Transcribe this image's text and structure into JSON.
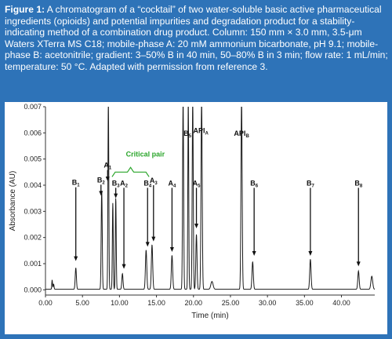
{
  "caption": {
    "label": "Figure 1:",
    "text": " A chromatogram of a “cocktail” of two water-soluble basic active pharmaceutical ingredients (opioids) and potential impurities and degradation product for a stability-indicating method of a combination drug product. Column: 150 mm × 3.0 mm, 3.5-μm Waters XTerra MS C18; mobile-phase A: 20 mM ammonium bicarbonate, pH 9.1; mobile-phase B: acetonitrile; gradient: 3–50% B in 40 min, 50–80% B in 3 min; flow rate: 1 mL/min; temperature: 50 °C. Adapted with permission from reference 3."
  },
  "colors": {
    "banner": "#2e73b8",
    "trace": "#1a1a1a",
    "critical_pair": "#2aa52a",
    "axis": "#333333"
  },
  "chart_data": {
    "type": "line",
    "xlabel": "Time (min)",
    "ylabel": "Absorbance (AU)",
    "xlim": [
      0,
      44.5
    ],
    "ylim": [
      -0.0002,
      0.007
    ],
    "xticks": [
      0.0,
      5.0,
      10.0,
      15.0,
      20.0,
      25.0,
      30.0,
      35.0,
      40.0
    ],
    "xtick_labels": [
      "0.00",
      "5.00",
      "10.00",
      "15.00",
      "20.00",
      "25.00",
      "30.00",
      "35.00",
      "40.00"
    ],
    "yticks": [
      0.0,
      0.001,
      0.002,
      0.003,
      0.004,
      0.005,
      0.006,
      0.007
    ],
    "ytick_labels": [
      "0.000",
      "0.001",
      "0.002",
      "0.003",
      "0.004",
      "0.005",
      "0.006",
      "0.007"
    ],
    "grid": false,
    "baseline": 2e-05,
    "peaks": [
      {
        "t": 0.9,
        "h": 0.00035,
        "w": 0.05
      },
      {
        "t": 1.1,
        "h": 0.0002,
        "w": 0.06
      },
      {
        "t": 4.1,
        "h": 0.00082,
        "w": 0.08
      },
      {
        "t": 7.6,
        "h": 0.0038,
        "w": 0.07
      },
      {
        "t": 8.5,
        "h": 0.0072,
        "w": 0.06
      },
      {
        "t": 9.1,
        "h": 0.0033,
        "w": 0.06
      },
      {
        "t": 9.5,
        "h": 0.0035,
        "w": 0.06
      },
      {
        "t": 10.4,
        "h": 0.0006,
        "w": 0.08
      },
      {
        "t": 13.6,
        "h": 0.0015,
        "w": 0.09
      },
      {
        "t": 14.4,
        "h": 0.0017,
        "w": 0.09
      },
      {
        "t": 17.1,
        "h": 0.0013,
        "w": 0.09
      },
      {
        "t": 18.6,
        "h": 0.0072,
        "w": 0.07
      },
      {
        "t": 19.3,
        "h": 0.0072,
        "w": 0.06
      },
      {
        "t": 19.9,
        "h": 0.0072,
        "w": 0.07
      },
      {
        "t": 20.4,
        "h": 0.0021,
        "w": 0.08
      },
      {
        "t": 21.1,
        "h": 0.0072,
        "w": 0.08
      },
      {
        "t": 22.5,
        "h": 0.0003,
        "w": 0.15
      },
      {
        "t": 26.5,
        "h": 0.0072,
        "w": 0.08
      },
      {
        "t": 28.0,
        "h": 0.00105,
        "w": 0.09
      },
      {
        "t": 35.8,
        "h": 0.00115,
        "w": 0.09
      },
      {
        "t": 42.3,
        "h": 0.0007,
        "w": 0.09
      },
      {
        "t": 44.1,
        "h": 0.0005,
        "w": 0.12
      }
    ],
    "annotations": [
      {
        "label": "B",
        "sub": "1",
        "t": 4.1,
        "tail": 0.00392,
        "head": 0.0011
      },
      {
        "label": "B",
        "sub": "2",
        "t": 7.5,
        "tail": 0.00402,
        "head": 0.0036
      },
      {
        "label": "A",
        "sub": "1",
        "t": 8.4,
        "tail": 0.00458,
        "head": 0.00415
      },
      {
        "label": "B",
        "sub": "3",
        "t": 9.5,
        "tail": 0.0039,
        "head": 0.0035
      },
      {
        "label": "A",
        "sub": "2",
        "t": 10.6,
        "tail": 0.0039,
        "head": 0.0008
      },
      {
        "label": "B",
        "sub": "4",
        "t": 13.8,
        "tail": 0.0039,
        "head": 0.00165
      },
      {
        "label": "A",
        "sub": "3",
        "t": 14.6,
        "tail": 0.004,
        "head": 0.00185
      },
      {
        "label": "A",
        "sub": "4",
        "t": 17.1,
        "tail": 0.0039,
        "head": 0.00145
      },
      {
        "label": "B",
        "sub": "5",
        "t": 19.2,
        "tail": 0.0058,
        "head": null
      },
      {
        "label": "API",
        "sub": "A",
        "t": 21.0,
        "tail": 0.0059,
        "head": null
      },
      {
        "label": "A",
        "sub": "5",
        "t": 20.4,
        "tail": 0.0039,
        "head": 0.00235
      },
      {
        "label": "API",
        "sub": "B",
        "t": 26.5,
        "tail": 0.0058,
        "head": null
      },
      {
        "label": "B",
        "sub": "6",
        "t": 28.2,
        "tail": 0.0039,
        "head": 0.0013
      },
      {
        "label": "B",
        "sub": "7",
        "t": 35.8,
        "tail": 0.0039,
        "head": 0.0013
      },
      {
        "label": "B",
        "sub": "8",
        "t": 42.3,
        "tail": 0.0039,
        "head": 0.0009
      }
    ],
    "critical_pair": {
      "label": "Critical pair",
      "t": 13.5,
      "y": 0.0051,
      "bracket_t": [
        9.0,
        14.0
      ],
      "bracket_y": 0.0045
    }
  }
}
